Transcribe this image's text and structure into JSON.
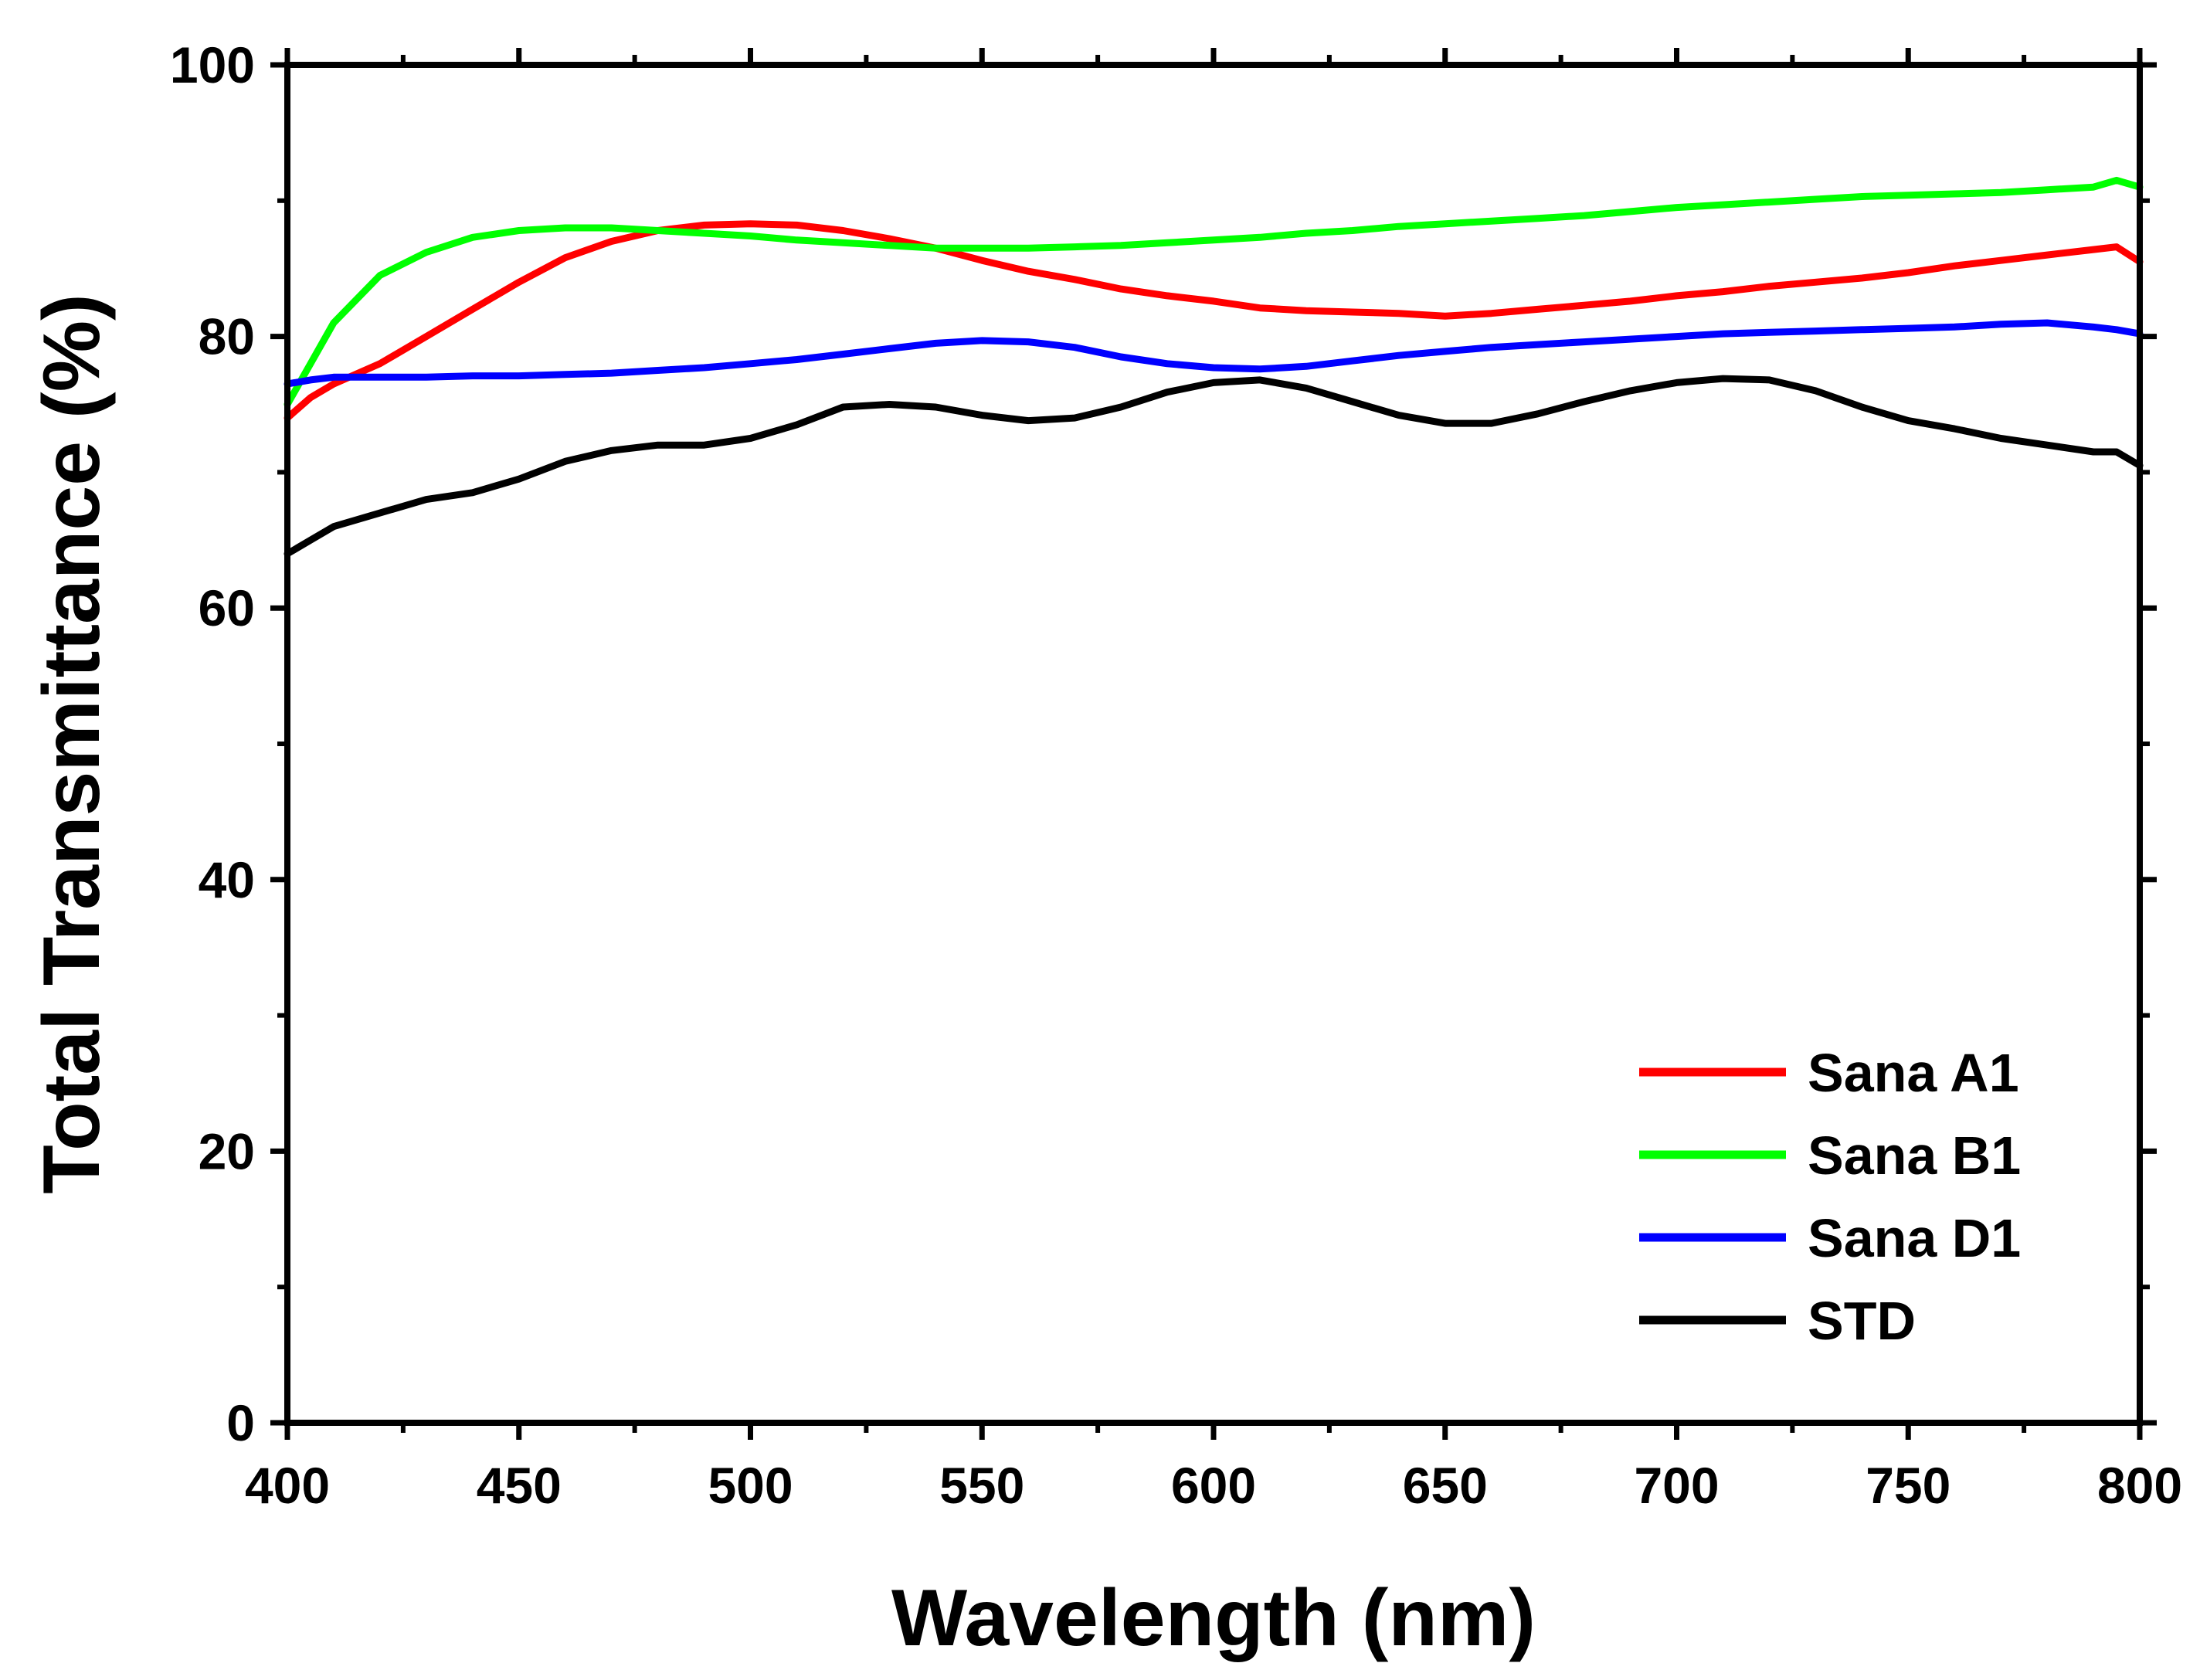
{
  "chart_data": {
    "type": "line",
    "title": "",
    "xlabel": "Wavelength (nm)",
    "ylabel": "Total Transmittance (%)",
    "xlim": [
      400,
      800
    ],
    "ylim": [
      0,
      100
    ],
    "xticks": [
      400,
      450,
      500,
      550,
      600,
      650,
      700,
      750,
      800
    ],
    "yticks": [
      0,
      20,
      40,
      60,
      80,
      100
    ],
    "grid": false,
    "legend_position": "bottom-right",
    "series": [
      {
        "name": "Sana A1",
        "color": "#ff0000",
        "x": [
          400,
          405,
          410,
          420,
          430,
          440,
          450,
          460,
          470,
          480,
          490,
          500,
          510,
          520,
          530,
          540,
          550,
          560,
          570,
          580,
          590,
          600,
          610,
          620,
          630,
          640,
          650,
          660,
          670,
          680,
          690,
          700,
          710,
          720,
          730,
          740,
          750,
          760,
          770,
          780,
          790,
          795,
          800
        ],
        "y": [
          74,
          75.5,
          76.5,
          78,
          80,
          82,
          84,
          85.8,
          87,
          87.8,
          88.2,
          88.3,
          88.2,
          87.8,
          87.2,
          86.5,
          85.6,
          84.8,
          84.2,
          83.5,
          83,
          82.6,
          82.1,
          81.9,
          81.8,
          81.7,
          81.5,
          81.7,
          82,
          82.3,
          82.6,
          83,
          83.3,
          83.7,
          84,
          84.3,
          84.7,
          85.2,
          85.6,
          86,
          86.4,
          86.6,
          85.5
        ]
      },
      {
        "name": "Sana B1",
        "color": "#00ff00",
        "x": [
          400,
          405,
          410,
          420,
          430,
          440,
          450,
          460,
          470,
          480,
          490,
          500,
          510,
          520,
          530,
          540,
          550,
          560,
          570,
          580,
          590,
          600,
          610,
          620,
          630,
          640,
          650,
          660,
          670,
          680,
          690,
          700,
          710,
          720,
          730,
          740,
          750,
          760,
          770,
          780,
          790,
          795,
          800
        ],
        "y": [
          75,
          78,
          81,
          84.5,
          86.2,
          87.3,
          87.8,
          88,
          88,
          87.8,
          87.6,
          87.4,
          87.1,
          86.9,
          86.7,
          86.5,
          86.5,
          86.5,
          86.6,
          86.7,
          86.9,
          87.1,
          87.3,
          87.6,
          87.8,
          88.1,
          88.3,
          88.5,
          88.7,
          88.9,
          89.2,
          89.5,
          89.7,
          89.9,
          90.1,
          90.3,
          90.4,
          90.5,
          90.6,
          90.8,
          91,
          91.5,
          91
        ]
      },
      {
        "name": "Sana D1",
        "color": "#0000ff",
        "x": [
          400,
          405,
          410,
          420,
          430,
          440,
          450,
          460,
          470,
          480,
          490,
          500,
          510,
          520,
          530,
          540,
          550,
          560,
          570,
          580,
          590,
          600,
          610,
          620,
          630,
          640,
          650,
          660,
          670,
          680,
          690,
          700,
          710,
          720,
          730,
          740,
          750,
          760,
          770,
          780,
          790,
          795,
          800
        ],
        "y": [
          76.5,
          76.8,
          77,
          77,
          77,
          77.1,
          77.1,
          77.2,
          77.3,
          77.5,
          77.7,
          78,
          78.3,
          78.7,
          79.1,
          79.5,
          79.7,
          79.6,
          79.2,
          78.5,
          78,
          77.7,
          77.6,
          77.8,
          78.2,
          78.6,
          78.9,
          79.2,
          79.4,
          79.6,
          79.8,
          80,
          80.2,
          80.3,
          80.4,
          80.5,
          80.6,
          80.7,
          80.9,
          81,
          80.7,
          80.5,
          80.2
        ]
      },
      {
        "name": "STD",
        "color": "#000000",
        "x": [
          400,
          405,
          410,
          420,
          430,
          440,
          450,
          460,
          470,
          480,
          490,
          500,
          510,
          520,
          530,
          540,
          550,
          560,
          570,
          580,
          590,
          600,
          610,
          620,
          630,
          640,
          650,
          660,
          670,
          680,
          690,
          700,
          710,
          720,
          730,
          740,
          750,
          760,
          770,
          780,
          790,
          795,
          800
        ],
        "y": [
          64,
          65,
          66,
          67,
          68,
          68.5,
          69.5,
          70.8,
          71.6,
          72,
          72,
          72.5,
          73.5,
          74.8,
          75,
          74.8,
          74.2,
          73.8,
          74,
          74.8,
          75.9,
          76.6,
          76.8,
          76.2,
          75.2,
          74.2,
          73.6,
          73.6,
          74.3,
          75.2,
          76,
          76.6,
          76.9,
          76.8,
          76,
          74.8,
          73.8,
          73.2,
          72.5,
          72,
          71.5,
          71.5,
          70.5
        ]
      }
    ]
  }
}
